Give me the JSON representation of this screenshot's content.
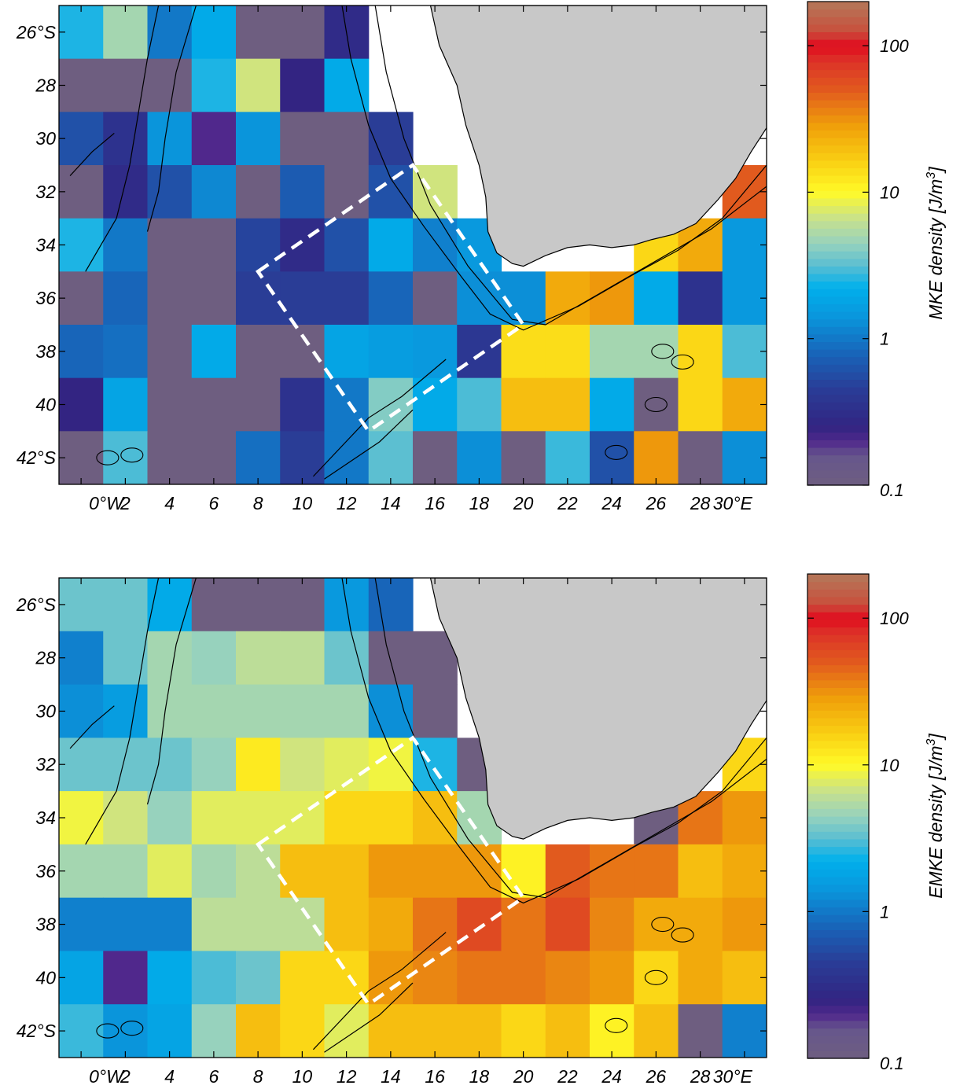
{
  "chart_data": [
    {
      "type": "heatmap",
      "title": "",
      "colorbar_label": "MKE density [J/m",
      "colorbar_sup": "3",
      "colorbar_suffix": "]",
      "colorbar_scale": "log",
      "colorbar_range": [
        0.1,
        200
      ],
      "colorbar_ticks": [
        "0.1",
        "1",
        "10",
        "100"
      ],
      "x_ticks": [
        "0°W",
        "2",
        "4",
        "6",
        "8",
        "10",
        "12",
        "14",
        "16",
        "18",
        "20",
        "22",
        "24",
        "26",
        "28",
        "30°E"
      ],
      "y_ticks": [
        "26°S",
        "28",
        "30",
        "32",
        "34",
        "36",
        "38",
        "40",
        "42°S"
      ],
      "grid_lon_edges": [
        -1,
        1,
        3,
        5,
        7,
        9,
        11,
        13,
        15,
        17,
        19,
        21,
        23,
        25,
        27,
        29,
        31
      ],
      "grid_lat_edges": [
        -25,
        -27,
        -29,
        -31,
        -33,
        -35,
        -37,
        -39,
        -41,
        -43
      ],
      "values": [
        [
          2.5,
          5,
          1.0,
          2.0,
          0.1,
          0.1,
          0.3,
          null,
          null,
          null,
          null,
          null,
          null,
          null,
          null,
          null
        ],
        [
          0.1,
          0.1,
          0.1,
          2.5,
          7,
          0.25,
          2.0,
          null,
          null,
          null,
          null,
          null,
          null,
          null,
          null,
          null
        ],
        [
          0.6,
          0.35,
          1.4,
          0.2,
          1.4,
          0.1,
          0.1,
          0.45,
          null,
          null,
          null,
          null,
          null,
          null,
          null,
          null
        ],
        [
          0.1,
          0.3,
          0.6,
          1.2,
          0.1,
          0.7,
          0.1,
          0.6,
          7,
          null,
          null,
          null,
          null,
          null,
          null,
          50
        ],
        [
          2.5,
          1.0,
          0.1,
          0.1,
          0.5,
          0.3,
          0.6,
          2.0,
          1.1,
          1.5,
          null,
          null,
          null,
          15,
          25,
          1.5
        ],
        [
          0.1,
          0.8,
          0.1,
          0.1,
          0.45,
          0.45,
          0.45,
          0.8,
          0.1,
          1.3,
          1.3,
          25,
          30,
          2.0,
          0.35,
          1.5
        ],
        [
          0.8,
          0.9,
          0.1,
          2.0,
          0.1,
          0.1,
          1.8,
          1.6,
          1.5,
          0.4,
          14,
          14,
          5,
          5,
          15,
          3.0
        ],
        [
          0.25,
          1.8,
          0.1,
          0.1,
          0.1,
          0.35,
          1.0,
          4,
          2.0,
          3.0,
          20,
          20,
          2.0,
          0.1,
          15,
          25
        ],
        [
          0.1,
          3,
          0.1,
          0.1,
          0.9,
          0.45,
          1.0,
          3.2,
          0.1,
          1.3,
          0.1,
          2.8,
          0.6,
          30,
          0.1,
          1.3
        ]
      ]
    },
    {
      "type": "heatmap",
      "title": "",
      "colorbar_label": "EMKE density [J/m",
      "colorbar_sup": "3",
      "colorbar_suffix": "]",
      "colorbar_scale": "log",
      "colorbar_range": [
        0.1,
        200
      ],
      "colorbar_ticks": [
        "0.1",
        "1",
        "10",
        "100"
      ],
      "x_ticks": [
        "0°W",
        "2",
        "4",
        "6",
        "8",
        "10",
        "12",
        "14",
        "16",
        "18",
        "20",
        "22",
        "24",
        "26",
        "28",
        "30°E"
      ],
      "y_ticks": [
        "26°S",
        "28",
        "30",
        "32",
        "34",
        "36",
        "38",
        "40",
        "42°S"
      ],
      "grid_lon_edges": [
        -1,
        1,
        3,
        5,
        7,
        9,
        11,
        13,
        15,
        17,
        19,
        21,
        23,
        25,
        27,
        29,
        31
      ],
      "grid_lat_edges": [
        -25,
        -27,
        -29,
        -31,
        -33,
        -35,
        -37,
        -39,
        -41,
        -43
      ],
      "values": [
        [
          3.5,
          3.5,
          2.0,
          0.1,
          0.1,
          0.1,
          1.5,
          0.8,
          null,
          null,
          null,
          null,
          null,
          null,
          null,
          null
        ],
        [
          1.1,
          3.5,
          5,
          4.5,
          6,
          6,
          3.5,
          0.1,
          0.1,
          null,
          null,
          null,
          null,
          null,
          null,
          null
        ],
        [
          1.3,
          1.6,
          5,
          5,
          5,
          5,
          5,
          1.3,
          0.1,
          null,
          null,
          null,
          null,
          null,
          null,
          null
        ],
        [
          3.5,
          3.5,
          3.5,
          4.5,
          12,
          7,
          8,
          9,
          2.5,
          0.1,
          null,
          null,
          null,
          null,
          null,
          15
        ],
        [
          9,
          7,
          4.5,
          8,
          8,
          8,
          15,
          15,
          20,
          5,
          null,
          null,
          null,
          0.1,
          40,
          30
        ],
        [
          5,
          5,
          8,
          5,
          6,
          20,
          20,
          30,
          30,
          30,
          11,
          50,
          40,
          40,
          20,
          25
        ],
        [
          1.1,
          1.1,
          1.1,
          6,
          6,
          6,
          20,
          25,
          40,
          60,
          40,
          60,
          35,
          25,
          25,
          30
        ],
        [
          1.8,
          0.2,
          2.0,
          3.0,
          3.5,
          15,
          15,
          30,
          35,
          40,
          40,
          35,
          30,
          15,
          25,
          20
        ],
        [
          2.8,
          1.4,
          1.8,
          4.5,
          20,
          15,
          8,
          20,
          20,
          20,
          15,
          20,
          11,
          20,
          0.1,
          1.1
        ]
      ]
    }
  ]
}
